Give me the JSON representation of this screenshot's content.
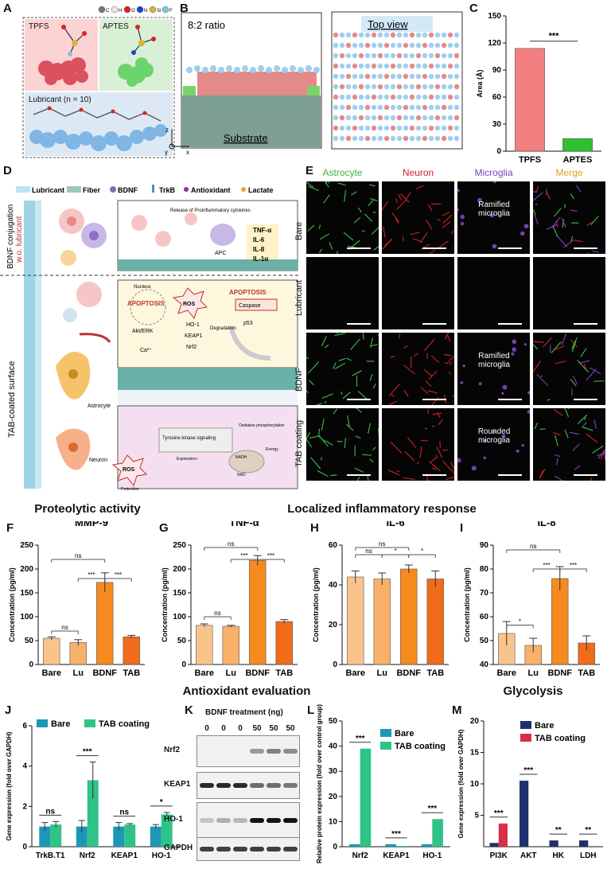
{
  "panels": {
    "A": {
      "letter": "A",
      "legend": [
        "C",
        "H",
        "O",
        "N",
        "Si",
        "F"
      ],
      "legend_colors": [
        "#777777",
        "#e8e8e8",
        "#e02020",
        "#2040d0",
        "#e0b040",
        "#7ec8e0"
      ],
      "tpfs": "TPFS",
      "aptes": "APTES",
      "lubricant": "Lubricant (n = 10)"
    },
    "B": {
      "letter": "B",
      "ratio": "8:2 ratio",
      "substrate": "Substrate",
      "top_view": "Top view",
      "axis_z": "z",
      "axis_x": "x",
      "axis_y": "y"
    },
    "C": {
      "letter": "C",
      "ylabel": "Area (Å)",
      "sig": "***"
    },
    "D": {
      "letter": "D",
      "legend": [
        "Lubricant",
        "Fiber",
        "BDNF",
        "TrkB",
        "Antioxidant",
        "Lactate"
      ],
      "side_top_1": "BDNF conjugation",
      "side_top_2": "w.o. lubricant",
      "side_bottom": "TAB-coated surface",
      "release": "Release of Proinflammatory cytokines",
      "cytokines": [
        "TNF-α",
        "IL-6",
        "IL-8",
        "IL-1α"
      ],
      "apc": "APC",
      "nucleus": "Nucleus",
      "apoptosis1": "APOPTOSIS",
      "apoptosis2": "APOPTOSIS",
      "ros1": "ROS",
      "ros2": "ROS",
      "ho1": "HO-1",
      "keap1": "KEAP1",
      "nrf2": "Nrf2",
      "degradation": "Degradation",
      "caspase": "Caspase",
      "p53": "p53",
      "akt": "Akt/ERK",
      "ca": "Ca²⁺",
      "tyrosine": "Tyrosine kinase signaling",
      "expression": "Expression↑",
      "protection": "Protection",
      "oxphos": "Oxidative phosphorylation",
      "energy": "Energy",
      "nadh": "NADH",
      "nad": "NAD",
      "astrocyte": "Astrocyte",
      "neuron": "Neuron"
    },
    "E": {
      "letter": "E",
      "cols": [
        "Astrocyte",
        "Neuron",
        "Microglia",
        "Merge"
      ],
      "col_colors": [
        "#3cb043",
        "#d02020",
        "#8040c0",
        "#e0a020"
      ],
      "rows": [
        "Bare",
        "Lubricant",
        "BDNF",
        "TAB coating"
      ],
      "captions": [
        "Ramified microglia",
        "",
        "Ramified microglia",
        "Rounded microglia"
      ]
    },
    "F": {
      "letter": "F"
    },
    "G": {
      "letter": "G"
    },
    "H": {
      "letter": "H"
    },
    "I": {
      "letter": "I"
    },
    "J": {
      "letter": "J"
    },
    "K": {
      "letter": "K",
      "title": "BDNF treatment (ng)",
      "doses": [
        "0",
        "0",
        "0",
        "50",
        "50",
        "50"
      ],
      "bands": [
        "Nrf2",
        "KEAP1",
        "HO-1",
        "GAPDH"
      ]
    },
    "L": {
      "letter": "L"
    },
    "M": {
      "letter": "M"
    }
  },
  "sections": {
    "proteolytic": "Proteolytic activity",
    "inflammatory": "Localized inflammatory response",
    "antioxidant": "Antioxidant evaluation",
    "glycolysis": "Glycolysis"
  },
  "chart_data": [
    {
      "id": "C",
      "type": "bar",
      "categories": [
        "TPFS",
        "APTES"
      ],
      "values": [
        114,
        14
      ],
      "ylabel": "Area (Å)",
      "ylim": [
        0,
        150
      ],
      "yticks": [
        0,
        30,
        60,
        90,
        120,
        150
      ],
      "colors": [
        "#f27f7f",
        "#2fc02f"
      ],
      "sig": [
        "***"
      ]
    },
    {
      "id": "F",
      "type": "bar",
      "title": "MMP-9",
      "categories": [
        "Bare",
        "Lu",
        "BDNF",
        "TAB"
      ],
      "values": [
        55,
        46,
        172,
        58
      ],
      "errors": [
        3,
        6,
        20,
        3
      ],
      "ylabel": "Concentration (pg/ml)",
      "ylim": [
        0,
        250
      ],
      "yticks": [
        0,
        50,
        100,
        150,
        200,
        250
      ],
      "colors": [
        "#f9c38c",
        "#f9b06a",
        "#f58b1f",
        "#f26b1a"
      ],
      "sig": [
        "ns",
        "***",
        "***",
        "ns"
      ]
    },
    {
      "id": "G",
      "type": "bar",
      "title": "TNF-α",
      "categories": [
        "Bare",
        "Lu",
        "BDNF",
        "TAB"
      ],
      "values": [
        82,
        80,
        218,
        90
      ],
      "errors": [
        3,
        2,
        10,
        4
      ],
      "ylabel": "Concentration (pg/ml)",
      "ylim": [
        0,
        250
      ],
      "yticks": [
        0,
        50,
        100,
        150,
        200,
        250
      ],
      "colors": [
        "#f9c38c",
        "#f9b06a",
        "#f58b1f",
        "#f26b1a"
      ],
      "sig": [
        "ns",
        "***",
        "***",
        "ns"
      ]
    },
    {
      "id": "H",
      "type": "bar",
      "title": "IL-6",
      "categories": [
        "Bare",
        "Lu",
        "BDNF",
        "TAB"
      ],
      "values": [
        44,
        43,
        48,
        43
      ],
      "errors": [
        3,
        3,
        2,
        4
      ],
      "ylabel": "Concentration (pg/ml)",
      "ylim": [
        0,
        60
      ],
      "yticks": [
        0,
        20,
        40,
        60
      ],
      "colors": [
        "#f9c38c",
        "#f9b06a",
        "#f58b1f",
        "#f26b1a"
      ],
      "sig": [
        "ns",
        "*",
        "*",
        "ns"
      ]
    },
    {
      "id": "I",
      "type": "bar",
      "title": "IL-8",
      "categories": [
        "Bare",
        "Lu",
        "BDNF",
        "TAB"
      ],
      "values": [
        53,
        48,
        76,
        49
      ],
      "errors": [
        5,
        3,
        5,
        3
      ],
      "ylabel": "Concentration (pg/ml)",
      "ylim": [
        40,
        90
      ],
      "yticks": [
        40,
        50,
        60,
        70,
        80,
        90
      ],
      "colors": [
        "#f9c38c",
        "#f9b06a",
        "#f58b1f",
        "#f26b1a"
      ],
      "sig": [
        "*",
        "***",
        "***",
        "ns"
      ]
    },
    {
      "id": "J",
      "type": "bar",
      "categories": [
        "TrkB.T1",
        "Nrf2",
        "KEAP1",
        "HO-1"
      ],
      "series": [
        {
          "name": "Bare",
          "values": [
            1.0,
            1.0,
            1.0,
            1.0
          ],
          "errors": [
            0.2,
            0.3,
            0.2,
            0.1
          ],
          "color": "#1d97b5"
        },
        {
          "name": "TAB coating",
          "values": [
            1.1,
            3.3,
            1.1,
            1.6
          ],
          "errors": [
            0.15,
            0.9,
            0.05,
            0.1
          ],
          "color": "#2ec486"
        }
      ],
      "ylabel": "Gene expression (fold over GAPDH)",
      "ylim": [
        0,
        6
      ],
      "yticks": [
        0,
        2,
        4,
        6
      ],
      "sig": [
        "ns",
        "***",
        "ns",
        "*"
      ]
    },
    {
      "id": "L",
      "type": "bar",
      "categories": [
        "Nrf2",
        "KEAP1",
        "HO-1"
      ],
      "series": [
        {
          "name": "Bare",
          "values": [
            1,
            1,
            1
          ],
          "color": "#1d97b5"
        },
        {
          "name": "TAB coating",
          "values": [
            39,
            0.3,
            11
          ],
          "color": "#2ec486"
        }
      ],
      "ylabel": "Relative protein expression (fold over control group)",
      "ylim": [
        0,
        50
      ],
      "yticks": [
        0,
        10,
        20,
        30,
        40,
        50
      ],
      "sig": [
        "***",
        "***",
        "***"
      ]
    },
    {
      "id": "M",
      "type": "bar",
      "categories": [
        "PI3K",
        "AKT",
        "HK",
        "LDH"
      ],
      "series": [
        {
          "name": "Bare",
          "values": [
            0.6,
            10.5,
            1.0,
            1.0
          ],
          "color": "#1f2f6e"
        },
        {
          "name": "TAB coating",
          "values": [
            3.7,
            0,
            0,
            0
          ],
          "color": "#d6304a"
        }
      ],
      "ylabel": "Gene expression (fold over GAPDH)",
      "ylim": [
        0,
        20
      ],
      "yticks": [
        5,
        10,
        15,
        20
      ],
      "sig": [
        "***",
        "***",
        "**",
        "**"
      ]
    }
  ]
}
